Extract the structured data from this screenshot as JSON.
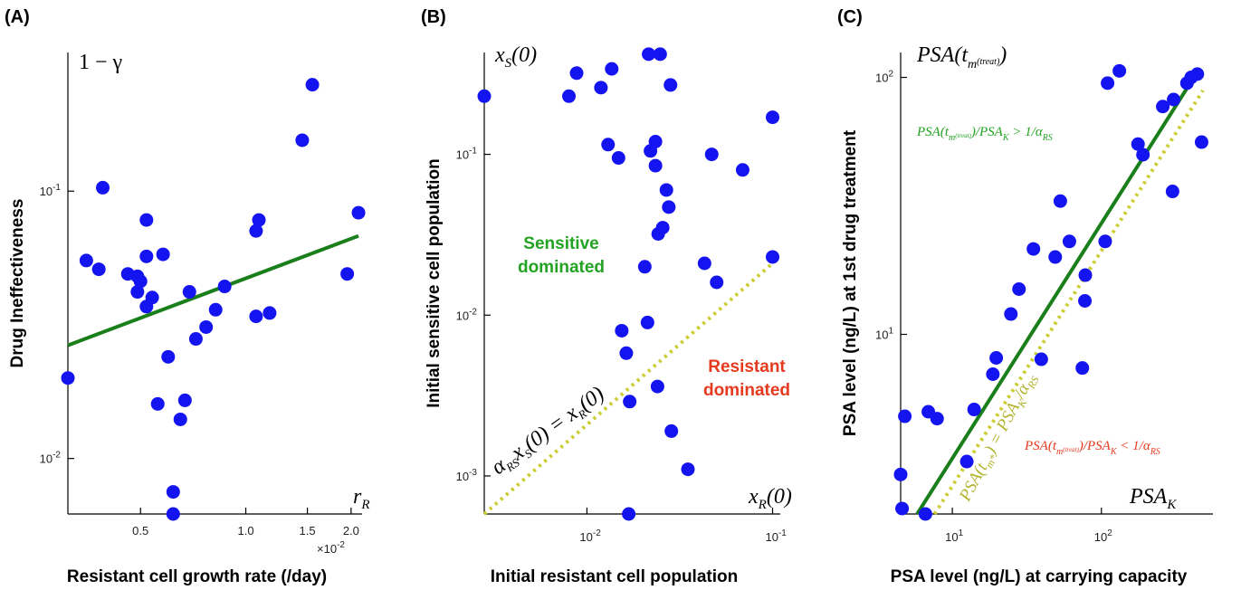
{
  "colors": {
    "points": "#1414f0",
    "fit_line": "#1a7f1a",
    "dotted_line": "#cccc33",
    "green_text": "#22a322",
    "red_text": "#e53a1e"
  },
  "chart_data": [
    {
      "panel": "(A)",
      "type": "scatter",
      "xlabel": "Resistant cell growth rate (/day)",
      "ylabel": "Drug Ineffectiveness",
      "math_y": "1 − γ",
      "math_x": "r_R",
      "x_scale": "log",
      "y_scale": "log",
      "xlim": [
        0.0031,
        0.0215
      ],
      "ylim": [
        0.0062,
        0.33
      ],
      "x_ticks": [
        "0.5",
        "1.0",
        "1.5",
        "2.0"
      ],
      "x_multiplier": "×10⁻²",
      "y_ticks": [
        "10⁻²",
        "10⁻¹"
      ],
      "points": [
        [
          0.0031,
          0.02
        ],
        [
          0.0035,
          0.055
        ],
        [
          0.0038,
          0.051
        ],
        [
          0.0039,
          0.103
        ],
        [
          0.0046,
          0.049
        ],
        [
          0.0049,
          0.048
        ],
        [
          0.0049,
          0.042
        ],
        [
          0.005,
          0.046
        ],
        [
          0.0052,
          0.078
        ],
        [
          0.0052,
          0.057
        ],
        [
          0.0052,
          0.037
        ],
        [
          0.0054,
          0.04
        ],
        [
          0.0056,
          0.016
        ],
        [
          0.0058,
          0.058
        ],
        [
          0.006,
          0.024
        ],
        [
          0.0062,
          0.0075
        ],
        [
          0.0062,
          0.0062
        ],
        [
          0.0065,
          0.014
        ],
        [
          0.0067,
          0.0165
        ],
        [
          0.0069,
          0.042
        ],
        [
          0.0072,
          0.028
        ],
        [
          0.0077,
          0.031
        ],
        [
          0.0082,
          0.036
        ],
        [
          0.0087,
          0.044
        ],
        [
          0.0107,
          0.034
        ],
        [
          0.0107,
          0.071
        ],
        [
          0.0109,
          0.078
        ],
        [
          0.0117,
          0.035
        ],
        [
          0.0145,
          0.155
        ],
        [
          0.0155,
          0.25
        ],
        [
          0.0195,
          0.049
        ],
        [
          0.021,
          0.083
        ]
      ],
      "fit_line": [
        [
          0.0031,
          0.0265
        ],
        [
          0.021,
          0.068
        ]
      ]
    },
    {
      "panel": "(B)",
      "type": "scatter",
      "xlabel": "Initial resistant cell population",
      "ylabel": "Initial sensitive cell population",
      "math_y": "x_S(0)",
      "math_x": "x_R(0)",
      "x_scale": "log",
      "y_scale": "log",
      "xlim": [
        0.0028,
        0.11
      ],
      "ylim": [
        0.00058,
        0.43
      ],
      "x_ticks": [
        "10⁻²",
        "10⁻¹"
      ],
      "y_ticks": [
        "10⁻³",
        "10⁻²",
        "10⁻¹"
      ],
      "region_green": "Sensitive dominated",
      "region_red": "Resistant dominated",
      "line_label": "α_RS x_S(0) = x_R(0)",
      "points": [
        [
          0.0028,
          0.23
        ],
        [
          0.008,
          0.23
        ],
        [
          0.0088,
          0.32
        ],
        [
          0.0119,
          0.26
        ],
        [
          0.013,
          0.115
        ],
        [
          0.0136,
          0.34
        ],
        [
          0.0148,
          0.095
        ],
        [
          0.0154,
          0.008
        ],
        [
          0.0163,
          0.0058
        ],
        [
          0.0168,
          0.00058
        ],
        [
          0.017,
          0.0029
        ],
        [
          0.0205,
          0.02
        ],
        [
          0.0212,
          0.009
        ],
        [
          0.0215,
          0.42
        ],
        [
          0.022,
          0.105
        ],
        [
          0.0234,
          0.085
        ],
        [
          0.0234,
          0.12
        ],
        [
          0.024,
          0.0036
        ],
        [
          0.0242,
          0.032
        ],
        [
          0.0248,
          0.42
        ],
        [
          0.0256,
          0.035
        ],
        [
          0.0268,
          0.06
        ],
        [
          0.0276,
          0.047
        ],
        [
          0.0282,
          0.27
        ],
        [
          0.0285,
          0.0019
        ],
        [
          0.035,
          0.0011
        ],
        [
          0.043,
          0.021
        ],
        [
          0.047,
          0.1
        ],
        [
          0.05,
          0.016
        ],
        [
          0.069,
          0.08
        ],
        [
          0.1,
          0.17
        ],
        [
          0.1,
          0.023
        ]
      ],
      "dotted_line": [
        [
          0.0028,
          0.00058
        ],
        [
          0.1,
          0.021
        ]
      ]
    },
    {
      "panel": "(C)",
      "type": "scatter",
      "xlabel": "PSA level (ng/L) at carrying capacity",
      "ylabel": "PSA level (ng/L) at 1st drug treatment",
      "math_y": "PSA(t_m(treat))",
      "math_x": "PSA_K",
      "x_scale": "log",
      "y_scale": "log",
      "xlim": [
        4.5,
        560
      ],
      "ylim": [
        2.0,
        125
      ],
      "x_ticks": [
        "10¹",
        "10²"
      ],
      "y_ticks": [
        "10¹",
        "10²"
      ],
      "label_upper": "PSA(t_m(treat))/PSA_K > 1/α_RS",
      "label_lower": "PSA(t_m(treat))/PSA_K < 1/α_RS",
      "line_label": "PSA(t_m*) = PSA_K/α_RS",
      "points": [
        [
          4.5,
          2.85
        ],
        [
          4.6,
          2.1
        ],
        [
          4.8,
          4.8
        ],
        [
          6.6,
          2.0
        ],
        [
          6.9,
          5.0
        ],
        [
          7.9,
          4.7
        ],
        [
          12.5,
          3.2
        ],
        [
          14.0,
          5.1
        ],
        [
          18.7,
          7.0
        ],
        [
          19.7,
          8.1
        ],
        [
          24.7,
          12.0
        ],
        [
          28.0,
          15.0
        ],
        [
          35.0,
          21.5
        ],
        [
          39.5,
          8.0
        ],
        [
          49.0,
          20.0
        ],
        [
          53.0,
          33.0
        ],
        [
          61.0,
          23.0
        ],
        [
          74.5,
          7.4
        ],
        [
          77.5,
          13.5
        ],
        [
          78.0,
          17.0
        ],
        [
          106.0,
          23.0
        ],
        [
          110.0,
          95.0
        ],
        [
          132.0,
          106.0
        ],
        [
          176.0,
          55.0
        ],
        [
          190.0,
          50.0
        ],
        [
          258.0,
          77.0
        ],
        [
          300.0,
          36.0
        ],
        [
          305.0,
          82.0
        ],
        [
          375.0,
          95.0
        ],
        [
          400.0,
          100.0
        ],
        [
          440.0,
          103.0
        ],
        [
          470.0,
          56.0
        ]
      ],
      "fit_line": [
        [
          5.8,
          2.0
        ],
        [
          440.0,
          105.0
        ]
      ],
      "dotted_line": [
        [
          7.6,
          2.0
        ],
        [
          480.0,
          89.0
        ]
      ]
    }
  ]
}
